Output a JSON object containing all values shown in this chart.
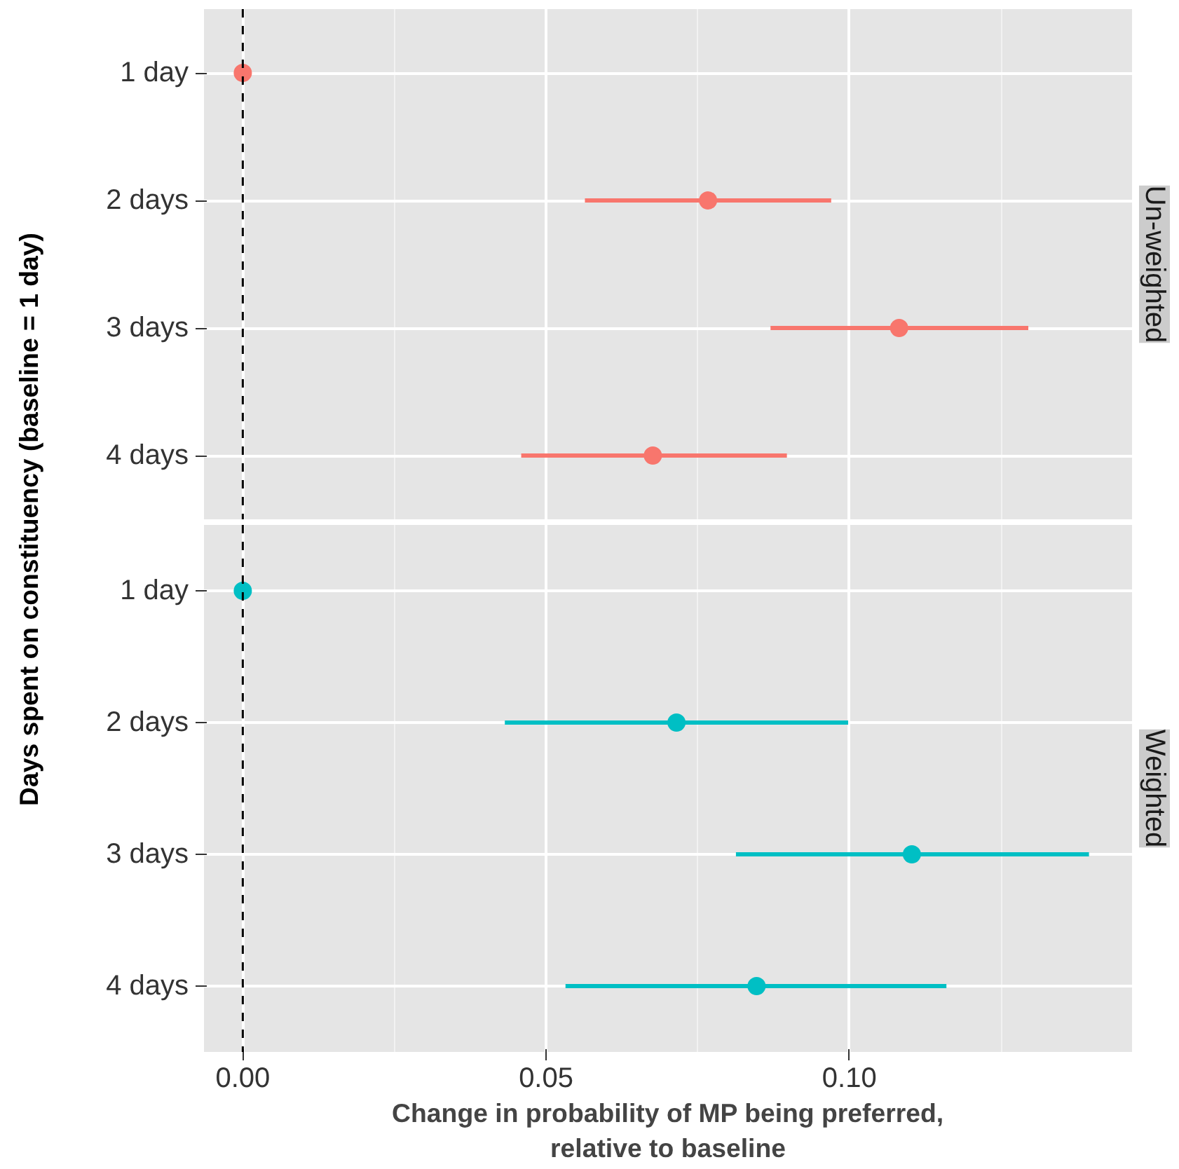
{
  "chart_data": [
    {
      "type": "scatter",
      "orientation": "horizontal",
      "title": "Un-weighted",
      "ylabel": "Days spent on constituency (baseline = 1 day)",
      "categories": [
        "1 day",
        "2 days",
        "3 days",
        "4 days"
      ],
      "values": [
        0,
        0.0767,
        0.1082,
        0.0676
      ],
      "errors": [
        null,
        [
          0.0564,
          0.097
        ],
        [
          0.087,
          0.1295
        ],
        [
          0.0459,
          0.0897
        ]
      ],
      "color": "#f8766d",
      "marker": "circle",
      "grid": true,
      "tick_labels": "y",
      "xlim": [
        -0.0064,
        0.1466
      ],
      "xticks": [
        0,
        0.05,
        0.1
      ],
      "ref_lines": [
        {
          "axis": "x",
          "value": 0,
          "label": null,
          "line_style": "dashed"
        }
      ]
    },
    {
      "type": "scatter",
      "orientation": "horizontal",
      "title": "Weighted",
      "xlabel": "Change in probability of MP being preferred,\nrelative to baseline",
      "categories": [
        "1 day",
        "2 days",
        "3 days",
        "4 days"
      ],
      "values": [
        0,
        0.0715,
        0.1103,
        0.0847
      ],
      "errors": [
        null,
        [
          0.0432,
          0.0998
        ],
        [
          0.0813,
          0.1395
        ],
        [
          0.0532,
          0.116
        ]
      ],
      "color": "#00bfc4",
      "marker": "circle",
      "grid": true,
      "xlim": [
        -0.0064,
        0.1466
      ],
      "xticks": [
        {
          "value": 0,
          "label": "0.00"
        },
        {
          "value": 0.05,
          "label": "0.05"
        },
        {
          "value": 0.1,
          "label": "0.10"
        }
      ],
      "ref_lines": [
        {
          "axis": "x",
          "value": 0,
          "label": null,
          "line_style": "dashed"
        }
      ]
    }
  ]
}
